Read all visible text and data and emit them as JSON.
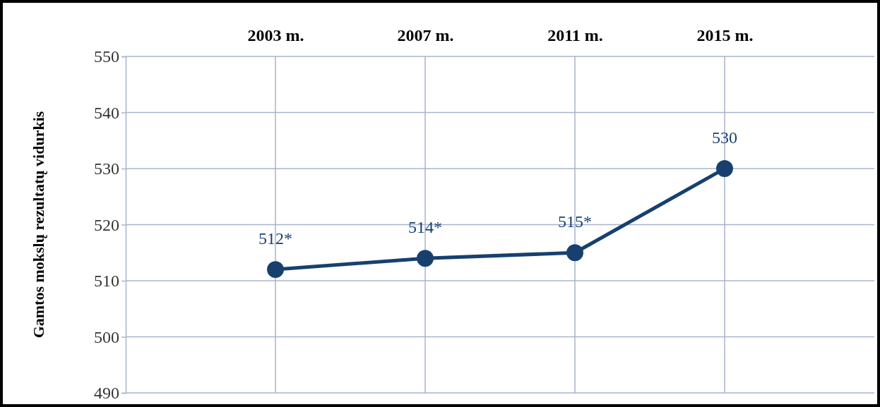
{
  "chart_data": {
    "type": "line",
    "ylabel": "Gamtos mokslų rezultatų vidurkis",
    "categories": [
      "2003 m.",
      "2007 m.",
      "2011 m.",
      "2015 m."
    ],
    "series": [
      {
        "color": "#17406f",
        "values": [
          512,
          514,
          515,
          530
        ],
        "value_labels": [
          "512*",
          "514*",
          "515*",
          "530"
        ]
      }
    ],
    "ylim": [
      490,
      550
    ],
    "yticks": [
      490,
      500,
      510,
      520,
      530,
      540,
      550
    ],
    "grid": true,
    "marker": "circle",
    "line_style": "solid"
  }
}
